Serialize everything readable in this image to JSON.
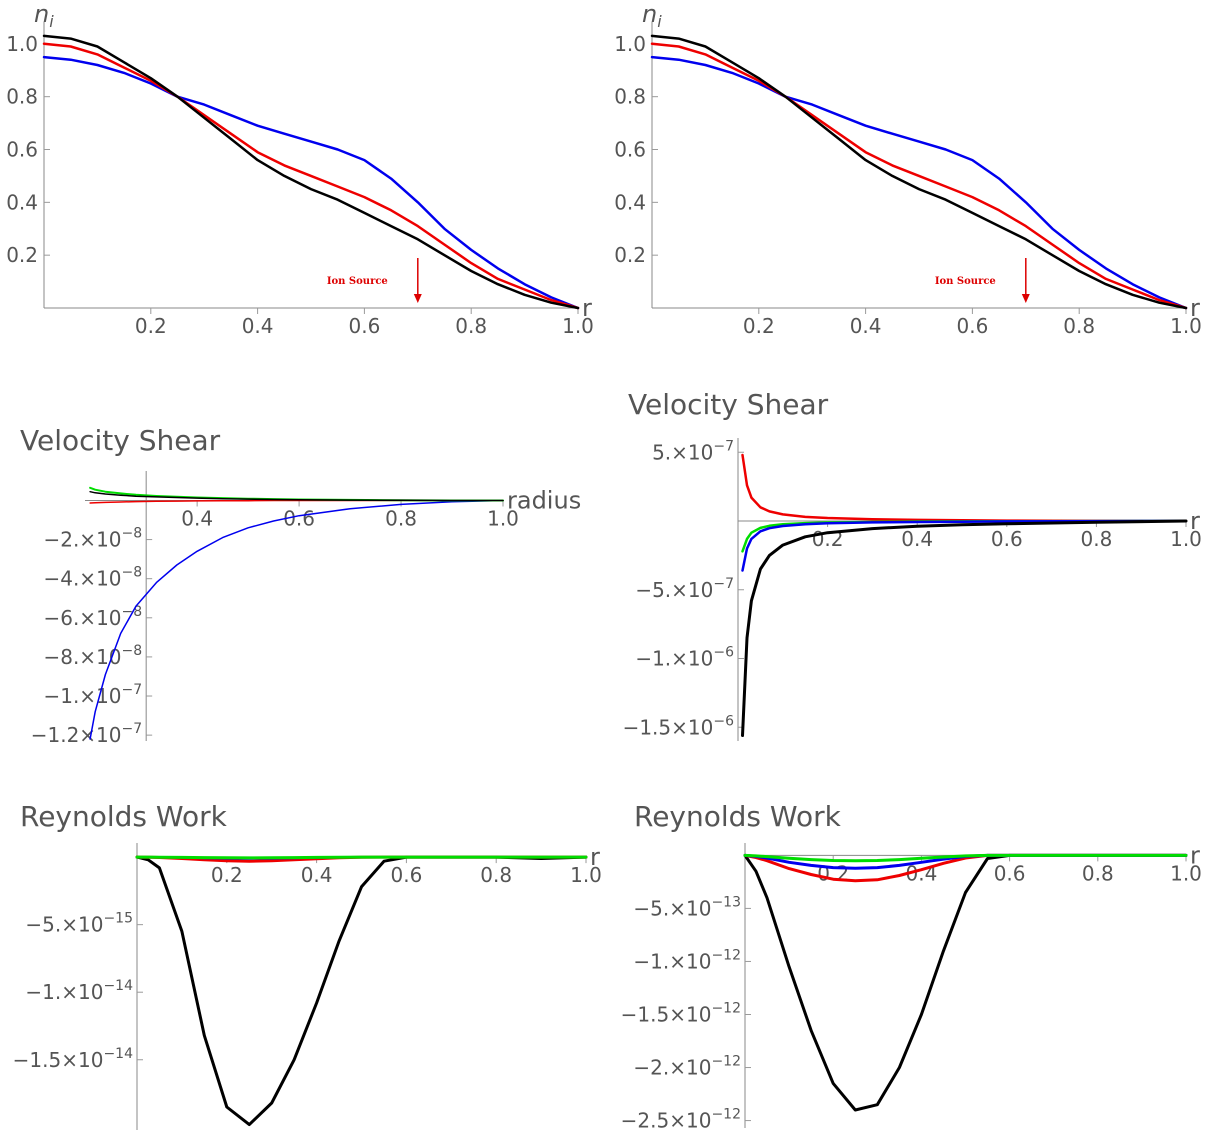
{
  "chart_data": [
    {
      "id": "density-left",
      "type": "line",
      "title": "",
      "xlabel": "r",
      "ylabel": "n_i",
      "xlim": [
        0,
        1.0
      ],
      "ylim": [
        0,
        1.06
      ],
      "grid": false,
      "xticks": [
        0.2,
        0.4,
        0.6,
        0.8,
        1.0
      ],
      "xtick_labels": [
        "0.2",
        "0.4",
        "0.6",
        "0.8",
        "1.0"
      ],
      "yticks": [
        0.2,
        0.4,
        0.6,
        0.8,
        1.0
      ],
      "ytick_labels": [
        "0.2",
        "0.4",
        "0.6",
        "0.8",
        "1.0"
      ],
      "annotation": {
        "text": "Ion Source",
        "x": 0.7,
        "color": "#dd0000"
      },
      "x": [
        0,
        0.05,
        0.1,
        0.15,
        0.2,
        0.25,
        0.3,
        0.35,
        0.4,
        0.45,
        0.5,
        0.55,
        0.6,
        0.65,
        0.7,
        0.75,
        0.8,
        0.85,
        0.9,
        0.95,
        1.0
      ],
      "series": [
        {
          "color": "#0000ee",
          "values": [
            0.95,
            0.94,
            0.92,
            0.89,
            0.85,
            0.8,
            0.77,
            0.73,
            0.69,
            0.66,
            0.63,
            0.6,
            0.56,
            0.49,
            0.4,
            0.3,
            0.22,
            0.15,
            0.09,
            0.04,
            0.0
          ]
        },
        {
          "color": "#ee0000",
          "values": [
            1.0,
            0.99,
            0.96,
            0.91,
            0.86,
            0.8,
            0.73,
            0.66,
            0.59,
            0.54,
            0.5,
            0.46,
            0.42,
            0.37,
            0.31,
            0.24,
            0.17,
            0.11,
            0.07,
            0.03,
            0.0
          ]
        },
        {
          "color": "#000000",
          "values": [
            1.03,
            1.02,
            0.99,
            0.93,
            0.87,
            0.8,
            0.72,
            0.64,
            0.56,
            0.5,
            0.45,
            0.41,
            0.36,
            0.31,
            0.26,
            0.2,
            0.14,
            0.09,
            0.05,
            0.02,
            0.0
          ]
        }
      ]
    },
    {
      "id": "density-right",
      "type": "line",
      "title": "",
      "xlabel": "r",
      "ylabel": "n_i",
      "xlim": [
        0,
        1.0
      ],
      "ylim": [
        0,
        1.06
      ],
      "grid": false,
      "xticks": [
        0.2,
        0.4,
        0.6,
        0.8,
        1.0
      ],
      "xtick_labels": [
        "0.2",
        "0.4",
        "0.6",
        "0.8",
        "1.0"
      ],
      "yticks": [
        0.2,
        0.4,
        0.6,
        0.8,
        1.0
      ],
      "ytick_labels": [
        "0.2",
        "0.4",
        "0.6",
        "0.8",
        "1.0"
      ],
      "annotation": {
        "text": "Ion Source",
        "x": 0.7,
        "color": "#dd0000"
      },
      "x": [
        0,
        0.05,
        0.1,
        0.15,
        0.2,
        0.25,
        0.3,
        0.35,
        0.4,
        0.45,
        0.5,
        0.55,
        0.6,
        0.65,
        0.7,
        0.75,
        0.8,
        0.85,
        0.9,
        0.95,
        1.0
      ],
      "series": [
        {
          "color": "#0000ee",
          "values": [
            0.95,
            0.94,
            0.92,
            0.89,
            0.85,
            0.8,
            0.77,
            0.73,
            0.69,
            0.66,
            0.63,
            0.6,
            0.56,
            0.49,
            0.4,
            0.3,
            0.22,
            0.15,
            0.09,
            0.04,
            0.0
          ]
        },
        {
          "color": "#ee0000",
          "values": [
            1.0,
            0.99,
            0.96,
            0.91,
            0.86,
            0.8,
            0.73,
            0.66,
            0.59,
            0.54,
            0.5,
            0.46,
            0.42,
            0.37,
            0.31,
            0.24,
            0.17,
            0.11,
            0.07,
            0.03,
            0.0
          ]
        },
        {
          "color": "#000000",
          "values": [
            1.03,
            1.02,
            0.99,
            0.93,
            0.87,
            0.8,
            0.72,
            0.64,
            0.56,
            0.5,
            0.45,
            0.41,
            0.36,
            0.31,
            0.26,
            0.2,
            0.14,
            0.09,
            0.05,
            0.02,
            0.0
          ]
        }
      ]
    },
    {
      "id": "shear-left",
      "type": "line",
      "title": "Velocity Shear",
      "xlabel": "radius",
      "ylabel": "",
      "xlim": [
        0.18,
        1.0
      ],
      "ylim": [
        -1.23e-07,
        1.2e-08
      ],
      "grid": false,
      "xticks": [
        0.4,
        0.6,
        0.8,
        1.0
      ],
      "xtick_labels": [
        "0.4",
        "0.6",
        "0.8",
        "1.0"
      ],
      "yticks": [
        -2e-08,
        -4e-08,
        -6e-08,
        -8e-08,
        -1e-07,
        -1.2e-07
      ],
      "ytick_labels": [
        {
          "mantissa": "−2.×10",
          "exponent": "−8"
        },
        {
          "mantissa": "−4.×10",
          "exponent": "−8"
        },
        {
          "mantissa": "−6.×10",
          "exponent": "−8"
        },
        {
          "mantissa": "−8.×10",
          "exponent": "−8"
        },
        {
          "mantissa": "−1.×10",
          "exponent": "−7"
        },
        {
          "mantissa": "−1.2×10",
          "exponent": "−7"
        }
      ],
      "x": [
        0.19,
        0.2,
        0.22,
        0.25,
        0.28,
        0.32,
        0.36,
        0.4,
        0.45,
        0.5,
        0.55,
        0.6,
        0.7,
        0.8,
        0.9,
        1.0
      ],
      "series": [
        {
          "color": "#0000ee",
          "width": 1.5,
          "values": [
            -1.22e-07,
            -1.08e-07,
            -8.9e-08,
            -6.8e-08,
            -5.4e-08,
            -4.2e-08,
            -3.3e-08,
            -2.6e-08,
            -1.9e-08,
            -1.4e-08,
            -1.05e-08,
            -7.8e-09,
            -4.2e-09,
            -2e-09,
            -7e-10,
            0
          ]
        },
        {
          "color": "#ee0000",
          "width": 1.5,
          "values": [
            -1.3e-09,
            -1.2e-09,
            -1e-09,
            -8e-10,
            -6e-10,
            -4e-10,
            -3e-10,
            -2e-10,
            -1e-10,
            -1e-10,
            0,
            0,
            0,
            0,
            0,
            0
          ]
        },
        {
          "color": "#00dd00",
          "width": 2,
          "values": [
            6.5e-09,
            5.5e-09,
            4.5e-09,
            3.6e-09,
            2.9e-09,
            2.3e-09,
            1.9e-09,
            1.5e-09,
            1.2e-09,
            9e-10,
            7e-10,
            5e-10,
            3e-10,
            1e-10,
            0,
            0
          ]
        },
        {
          "color": "#000000",
          "width": 1.5,
          "values": [
            4.5e-09,
            3.9e-09,
            3.3e-09,
            2.7e-09,
            2.2e-09,
            1.8e-09,
            1.5e-09,
            1.2e-09,
            9e-10,
            7e-10,
            5e-10,
            4e-10,
            2e-10,
            1e-10,
            0,
            0
          ]
        }
      ]
    },
    {
      "id": "shear-right",
      "type": "line",
      "title": "Velocity Shear",
      "xlabel": "r",
      "ylabel": "",
      "xlim": [
        0,
        1.0
      ],
      "ylim": [
        -1.6e-06,
        5.6e-07
      ],
      "grid": false,
      "xticks": [
        0.2,
        0.4,
        0.6,
        0.8,
        1.0
      ],
      "xtick_labels": [
        "0.2",
        "0.4",
        "0.6",
        "0.8",
        "1.0"
      ],
      "yticks": [
        5e-07,
        -5e-07,
        -1e-06,
        -1.5e-06
      ],
      "ytick_labels": [
        {
          "mantissa": "5.×10",
          "exponent": "−7"
        },
        {
          "mantissa": "−5.×10",
          "exponent": "−7"
        },
        {
          "mantissa": "−1.×10",
          "exponent": "−6"
        },
        {
          "mantissa": "−1.5×10",
          "exponent": "−6"
        }
      ],
      "x": [
        0.01,
        0.02,
        0.03,
        0.05,
        0.07,
        0.1,
        0.15,
        0.2,
        0.3,
        0.4,
        0.5,
        0.6,
        0.8,
        1.0
      ],
      "series": [
        {
          "color": "#ee0000",
          "width": 2.5,
          "values": [
            4.8e-07,
            2.6e-07,
            1.7e-07,
            1e-07,
            7e-08,
            4.8e-08,
            3e-08,
            2.2e-08,
            1.3e-08,
            8e-09,
            5e-09,
            3e-09,
            1e-09,
            0
          ]
        },
        {
          "color": "#00dd00",
          "width": 2.5,
          "values": [
            -2.2e-07,
            -1.3e-07,
            -8.5e-08,
            -5e-08,
            -3.5e-08,
            -2.4e-08,
            -1.5e-08,
            -1.1e-08,
            -7e-09,
            -4e-09,
            -3e-09,
            -2e-09,
            -1e-09,
            0
          ]
        },
        {
          "color": "#0000ee",
          "width": 2.5,
          "values": [
            -3.6e-07,
            -2e-07,
            -1.3e-07,
            -7.5e-08,
            -5.2e-08,
            -3.6e-08,
            -2.3e-08,
            -1.7e-08,
            -1e-08,
            -7e-09,
            -5e-09,
            -3e-09,
            -1e-09,
            0
          ]
        },
        {
          "color": "#000000",
          "width": 3,
          "values": [
            -1.56e-06,
            -8.5e-07,
            -5.8e-07,
            -3.5e-07,
            -2.5e-07,
            -1.75e-07,
            -1.15e-07,
            -8.5e-08,
            -5.5e-08,
            -3.8e-08,
            -2.7e-08,
            -2e-08,
            -9e-09,
            0
          ]
        }
      ]
    },
    {
      "id": "reynolds-left",
      "type": "line",
      "title": "Reynolds Work",
      "xlabel": "r",
      "ylabel": "",
      "xlim": [
        0,
        1.0
      ],
      "ylim": [
        -2.02e-14,
        6e-16
      ],
      "grid": false,
      "xticks": [
        0.2,
        0.4,
        0.6,
        0.8,
        1.0
      ],
      "xtick_labels": [
        "0.2",
        "0.4",
        "0.6",
        "0.8",
        "1.0"
      ],
      "yticks": [
        -5e-15,
        -1e-14,
        -1.5e-14
      ],
      "ytick_labels": [
        {
          "mantissa": "−5.×10",
          "exponent": "−15"
        },
        {
          "mantissa": "−1.×10",
          "exponent": "−14"
        },
        {
          "mantissa": "−1.5×10",
          "exponent": "−14"
        }
      ],
      "x": [
        0,
        0.025,
        0.05,
        0.1,
        0.15,
        0.2,
        0.25,
        0.3,
        0.35,
        0.4,
        0.45,
        0.5,
        0.55,
        0.6,
        0.7,
        0.8,
        0.9,
        1.0
      ],
      "series": [
        {
          "color": "#000000",
          "width": 3,
          "values": [
            0,
            -2e-16,
            -8e-16,
            -5.5e-15,
            -1.32e-14,
            -1.85e-14,
            -1.98e-14,
            -1.82e-14,
            -1.5e-14,
            -1.08e-14,
            -6.2e-15,
            -2.2e-15,
            -3e-16,
            0,
            0,
            0,
            -1e-16,
            0
          ]
        },
        {
          "color": "#ee0000",
          "width": 3,
          "values": [
            0,
            -1e-17,
            -3e-17,
            -1e-16,
            -2e-16,
            -2.7e-16,
            -3e-16,
            -2.7e-16,
            -2e-16,
            -1.2e-16,
            -5e-17,
            -1e-17,
            0,
            0,
            0,
            0,
            0,
            0
          ]
        },
        {
          "color": "#0000ee",
          "width": 2,
          "values": [
            0,
            0,
            -1e-17,
            -4e-17,
            -8e-17,
            -1.1e-16,
            -1.2e-16,
            -1.1e-16,
            -8e-17,
            -5e-17,
            -2e-17,
            0,
            0,
            0,
            0,
            0,
            0,
            0
          ]
        },
        {
          "color": "#00dd00",
          "width": 3,
          "values": [
            0,
            0,
            -1e-17,
            -2e-17,
            -4e-17,
            -5e-17,
            -6e-17,
            -5e-17,
            -4e-17,
            -2e-17,
            -1e-17,
            0,
            0,
            0,
            0,
            0,
            0,
            0
          ]
        }
      ]
    },
    {
      "id": "reynolds-right",
      "type": "line",
      "title": "Reynolds Work",
      "xlabel": "r",
      "ylabel": "",
      "xlim": [
        0,
        1.0
      ],
      "ylim": [
        -2.57e-12,
        6e-14
      ],
      "grid": false,
      "xticks": [
        0.2,
        0.4,
        0.6,
        0.8,
        1.0
      ],
      "xtick_labels": [
        "0.2",
        "0.4",
        "0.6",
        "0.8",
        "1.0"
      ],
      "yticks": [
        -5e-13,
        -1e-12,
        -1.5e-12,
        -2e-12,
        -2.5e-12
      ],
      "ytick_labels": [
        {
          "mantissa": "−5.×10",
          "exponent": "−13"
        },
        {
          "mantissa": "−1.×10",
          "exponent": "−12"
        },
        {
          "mantissa": "−1.5×10",
          "exponent": "−12"
        },
        {
          "mantissa": "−2.×10",
          "exponent": "−12"
        },
        {
          "mantissa": "−2.5×10",
          "exponent": "−12"
        }
      ],
      "x": [
        0,
        0.025,
        0.05,
        0.1,
        0.15,
        0.2,
        0.25,
        0.3,
        0.35,
        0.4,
        0.45,
        0.5,
        0.55,
        0.6,
        0.7,
        0.8,
        0.9,
        1.0
      ],
      "series": [
        {
          "color": "#000000",
          "width": 3,
          "values": [
            0,
            -1.5e-13,
            -4e-13,
            -1.05e-12,
            -1.65e-12,
            -2.15e-12,
            -2.4e-12,
            -2.35e-12,
            -2e-12,
            -1.5e-12,
            -9e-13,
            -3.5e-13,
            -3e-14,
            0,
            0,
            0,
            0,
            0
          ]
        },
        {
          "color": "#ee0000",
          "width": 3,
          "values": [
            0,
            -2e-14,
            -5e-14,
            -1.25e-13,
            -1.8e-13,
            -2.25e-13,
            -2.4e-13,
            -2.3e-13,
            -1.9e-13,
            -1.35e-13,
            -7.5e-14,
            -2.5e-14,
            0,
            0,
            0,
            0,
            0,
            0
          ]
        },
        {
          "color": "#0000ee",
          "width": 3,
          "values": [
            0,
            -1e-14,
            -2.5e-14,
            -6.5e-14,
            -9.5e-14,
            -1.15e-13,
            -1.22e-13,
            -1.15e-13,
            -9.5e-14,
            -6.5e-14,
            -3.5e-14,
            -1e-14,
            0,
            0,
            0,
            0,
            0,
            0
          ]
        },
        {
          "color": "#00dd00",
          "width": 3,
          "values": [
            0,
            -5e-15,
            -1.2e-14,
            -2.8e-14,
            -4e-14,
            -4.8e-14,
            -5e-14,
            -4.8e-14,
            -4e-14,
            -2.8e-14,
            -1.5e-14,
            -5e-15,
            0,
            0,
            0,
            0,
            0,
            0
          ]
        }
      ]
    }
  ]
}
